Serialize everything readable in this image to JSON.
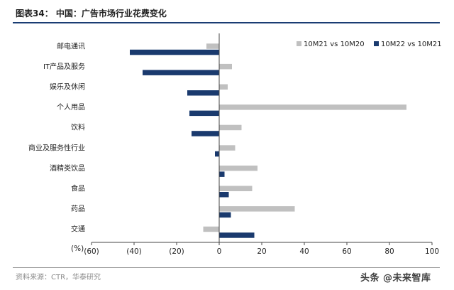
{
  "header": {
    "title": "图表34：  中国：广告市场行业花费变化"
  },
  "footer": {
    "source": "资料来源：CTR，华泰研究",
    "watermark": "头条 @未来智库"
  },
  "colors": {
    "series_a": "#c0c0c0",
    "series_b": "#1a3a6e",
    "axis": "#444444",
    "title_rule": "#1a3d73"
  },
  "chart_data": {
    "type": "bar",
    "orientation": "horizontal",
    "title": "",
    "xlabel": "",
    "ylabel": "",
    "x_unit_label": "(%)",
    "xlim": [
      -60,
      100
    ],
    "x_ticks": [
      -60,
      -40,
      -20,
      0,
      20,
      40,
      60,
      80,
      100
    ],
    "x_tick_labels": [
      "(60)",
      "(40)",
      "(20)",
      "0",
      "20",
      "40",
      "60",
      "80",
      "100"
    ],
    "grid": false,
    "legend_position": "top-right",
    "categories": [
      "邮电通讯",
      "IT产品及服务",
      "娱乐及休闲",
      "个人用品",
      "饮料",
      "商业及服务性行业",
      "酒精类饮品",
      "食品",
      "药品",
      "交通"
    ],
    "series": [
      {
        "name": "10M21 vs 10M20",
        "color": "#c0c0c0",
        "values": [
          -6,
          6,
          4,
          88,
          10.5,
          7.5,
          18,
          15.5,
          35.5,
          -7.5
        ]
      },
      {
        "name": "10M22 vs 10M21",
        "color": "#1a3a6e",
        "values": [
          -42,
          -36,
          -15,
          -14,
          -13,
          -2,
          2.5,
          4.5,
          5.5,
          16.5
        ]
      }
    ]
  }
}
